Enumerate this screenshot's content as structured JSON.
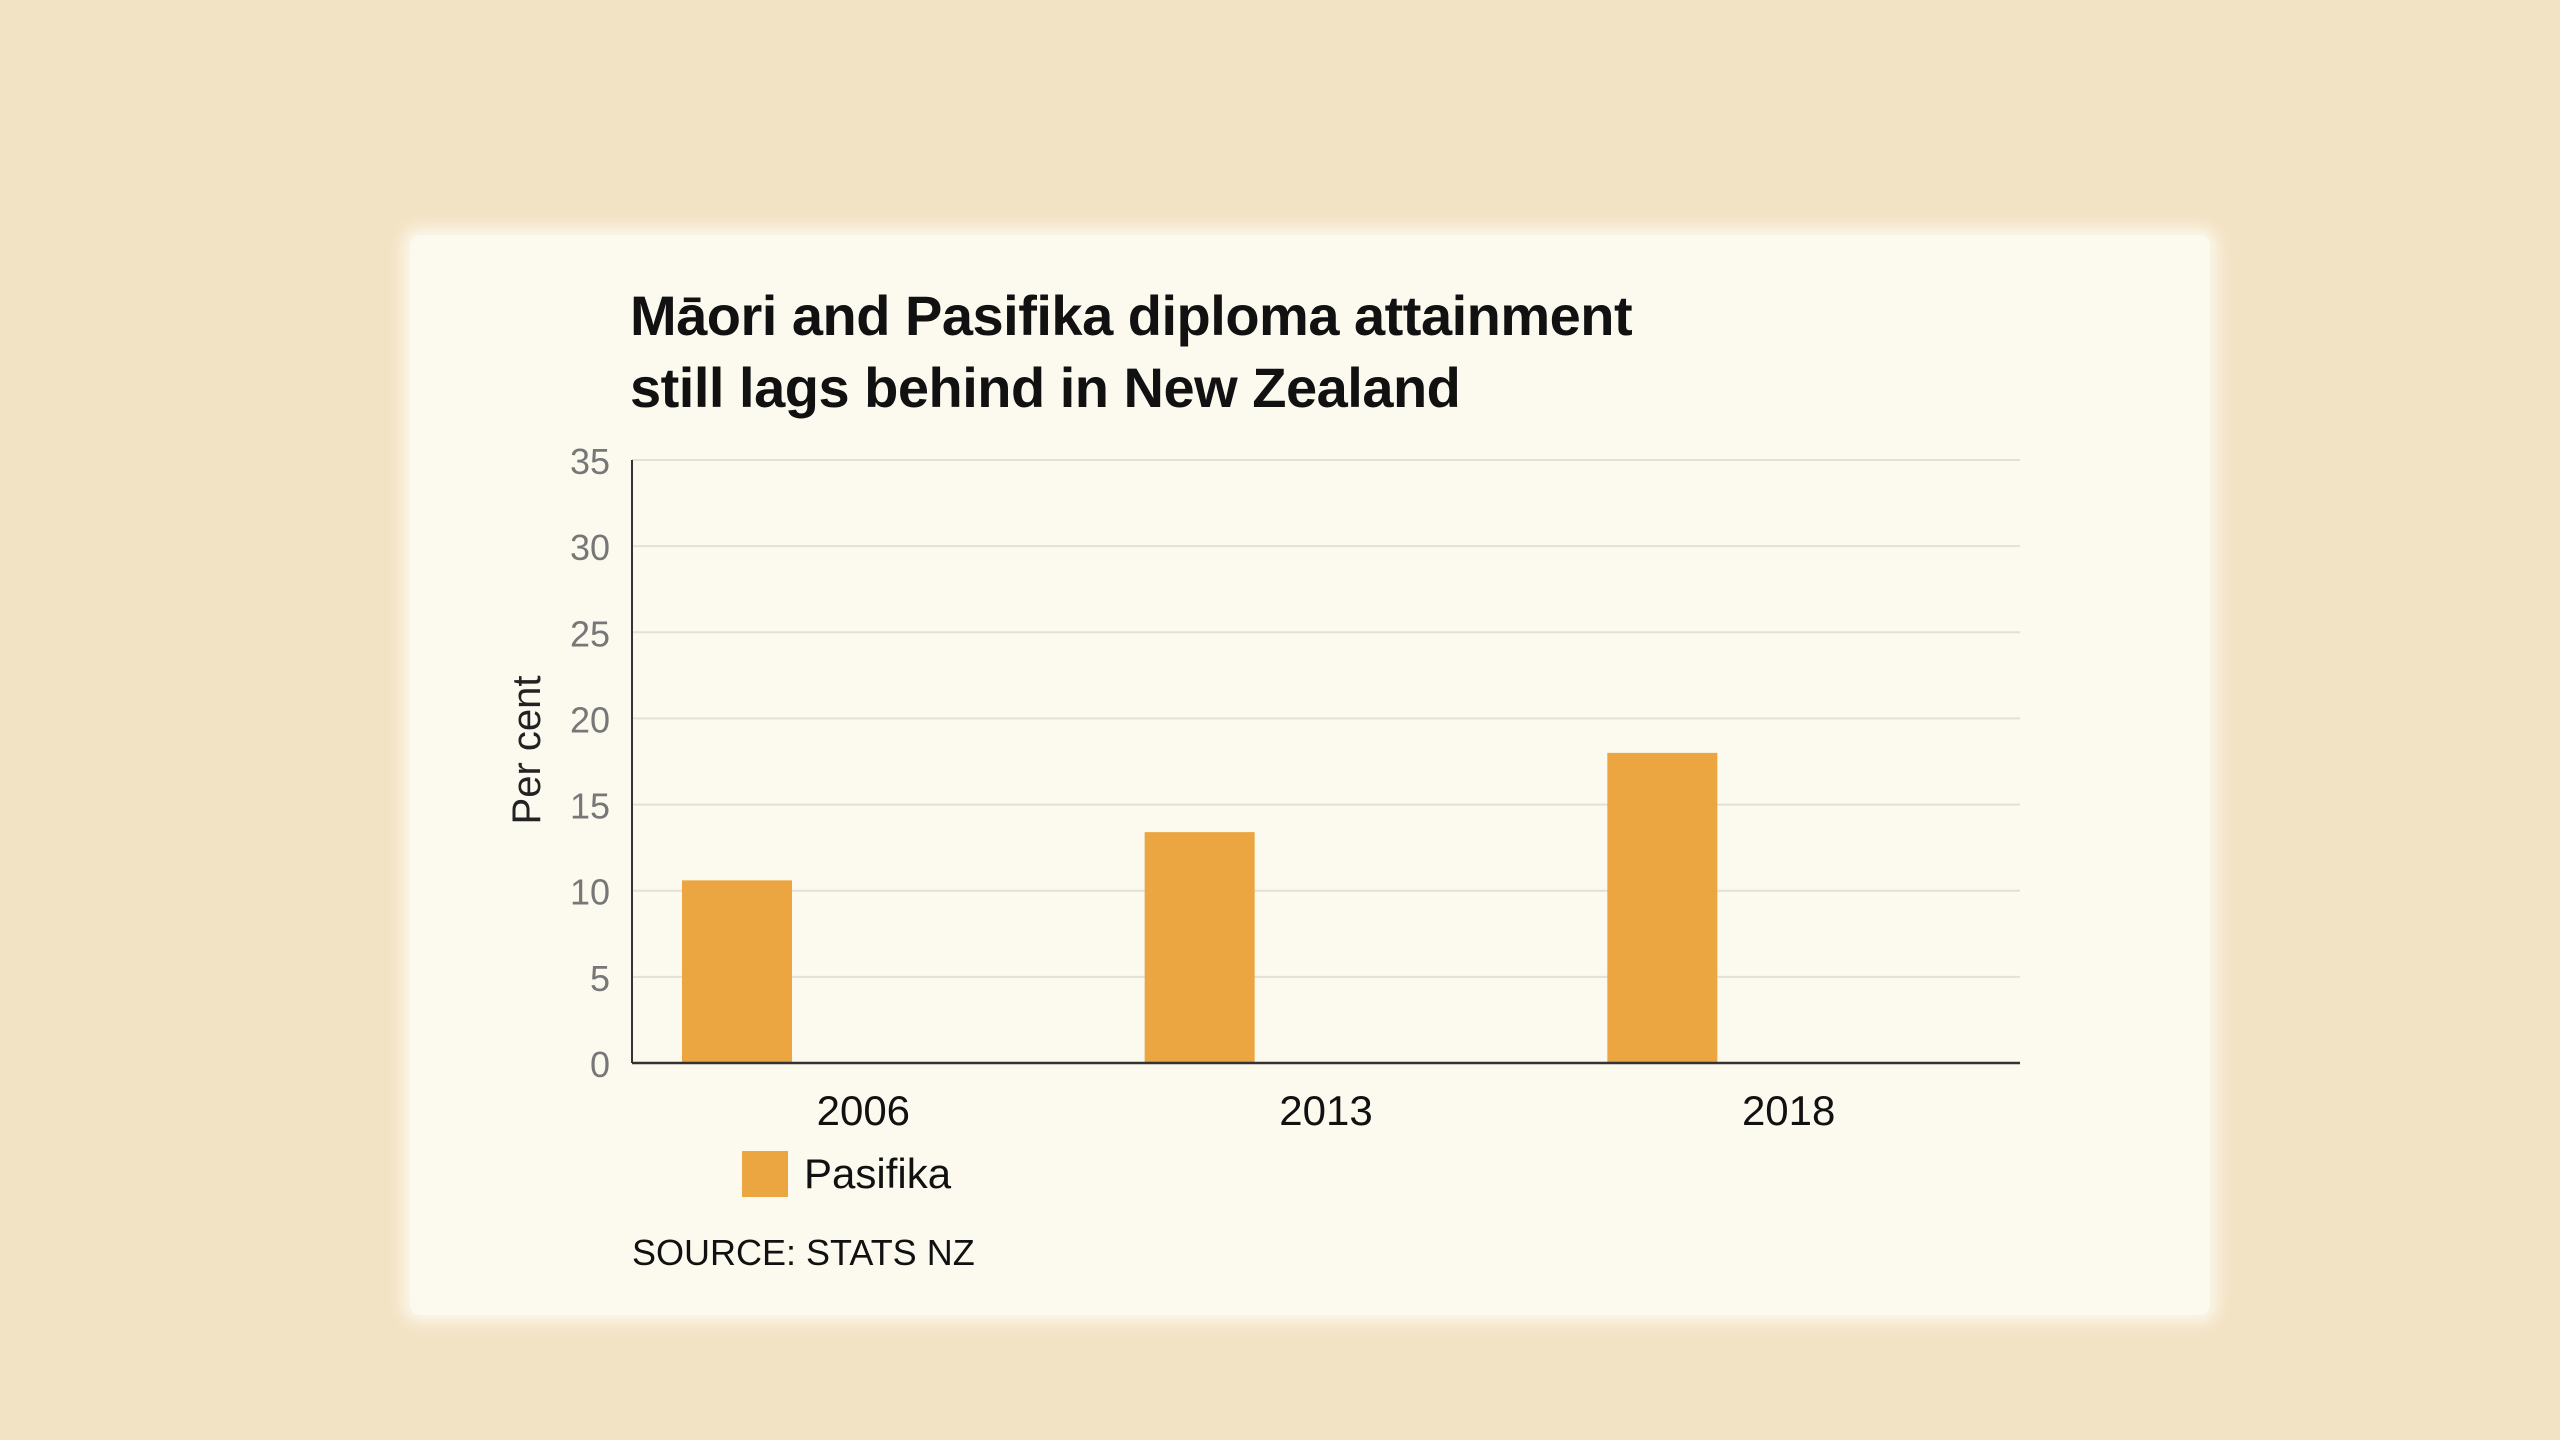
{
  "chart_data": {
    "type": "bar",
    "title": "Māori and Pasifika diploma attainment still lags behind in New Zealand",
    "title_lines": [
      "Māori and Pasifika diploma attainment",
      "still lags behind in New Zealand"
    ],
    "ylabel": "Per cent",
    "xlabel": "",
    "categories": [
      "2006",
      "2013",
      "2018"
    ],
    "series": [
      {
        "name": "Pasifika",
        "values": [
          10.6,
          13.4,
          18.0
        ],
        "color": "#eba541"
      }
    ],
    "ylim": [
      0,
      35
    ],
    "yticks": [
      "0",
      "5",
      "10",
      "15",
      "20",
      "25",
      "30",
      "35"
    ],
    "grid": true,
    "legend_position": "bottom-left"
  },
  "legend": {
    "label": "Pasifika",
    "color": "#eba541"
  },
  "source": "SOURCE: STATS NZ"
}
